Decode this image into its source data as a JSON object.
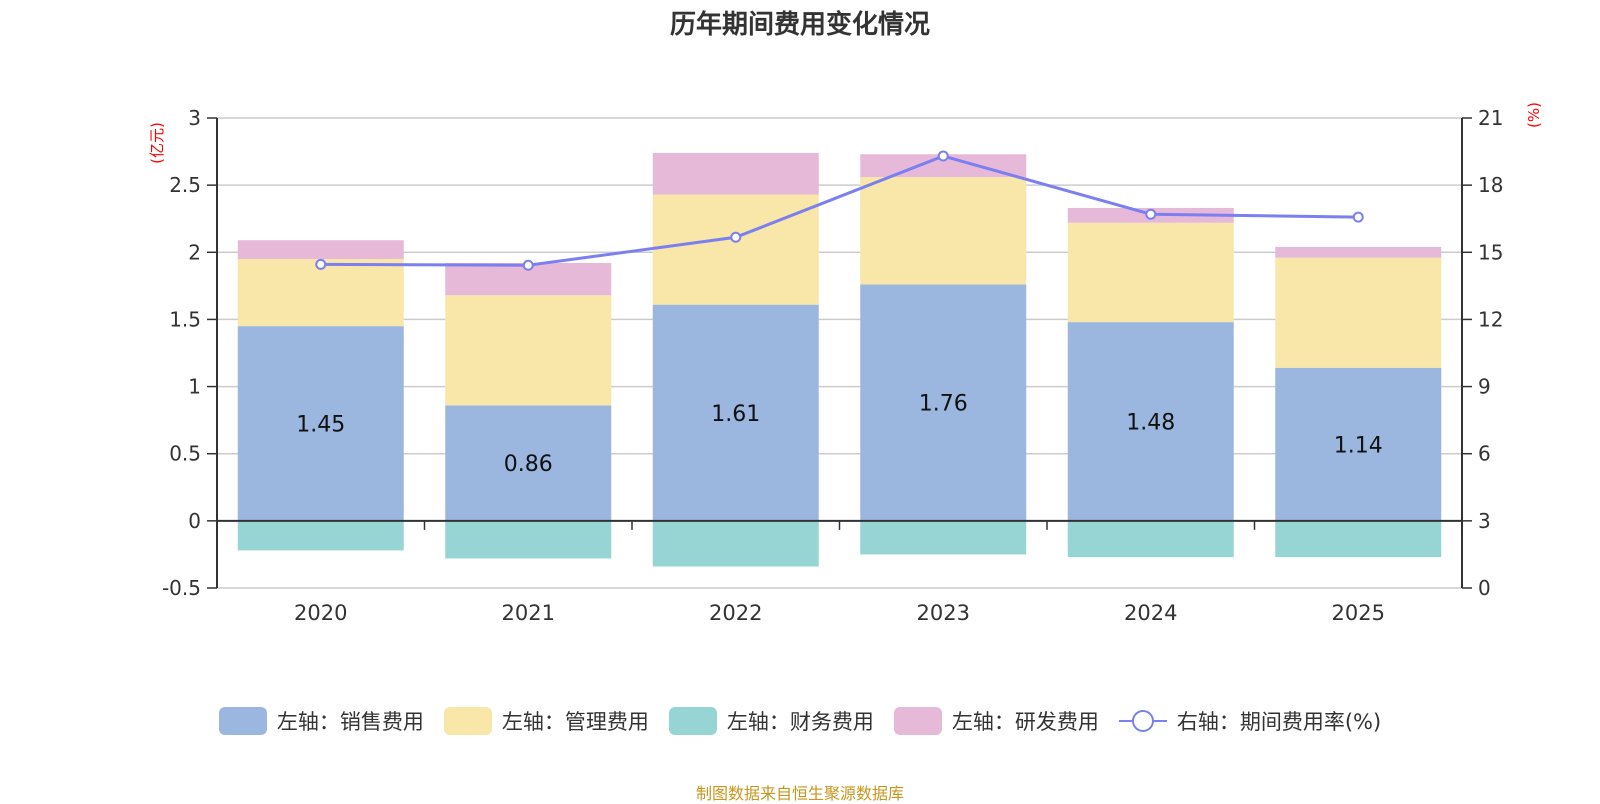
{
  "title": "历年期间费用变化情况",
  "source": "制图数据来自恒生聚源数据库",
  "chart_data": {
    "type": "bar",
    "stacked": true,
    "title": "历年期间费用变化情况",
    "categories": [
      "2020",
      "2021",
      "2022",
      "2023",
      "2024",
      "2025"
    ],
    "left_axis": {
      "label": "(亿元)",
      "min": -0.5,
      "max": 3,
      "ticks": [
        -0.5,
        0,
        0.5,
        1,
        1.5,
        2,
        2.5,
        3
      ],
      "tick_labels": [
        "-0.5",
        "0",
        "0.5",
        "1",
        "1.5",
        "2",
        "2.5",
        "3"
      ]
    },
    "right_axis": {
      "label": "(%)",
      "min": 0,
      "max": 21,
      "ticks": [
        0,
        3,
        6,
        9,
        12,
        15,
        18,
        21
      ],
      "tick_labels": [
        "0",
        "3",
        "6",
        "9",
        "12",
        "15",
        "18",
        "21"
      ]
    },
    "grid": true,
    "legend_position": "bottom",
    "series": [
      {
        "name": "左轴：销售费用",
        "type": "bar",
        "axis": "left",
        "color": "#9bb7e0",
        "values": [
          1.45,
          0.86,
          1.61,
          1.76,
          1.48,
          1.14
        ],
        "data_labels": [
          "1.45",
          "0.86",
          "1.61",
          "1.76",
          "1.48",
          "1.14"
        ]
      },
      {
        "name": "左轴：管理费用",
        "type": "bar",
        "axis": "left",
        "color": "#f8e7a8",
        "values": [
          0.5,
          0.82,
          0.82,
          0.8,
          0.74,
          0.82
        ]
      },
      {
        "name": "左轴：财务费用",
        "type": "bar",
        "axis": "left",
        "color": "#97d4d4",
        "values": [
          -0.22,
          -0.28,
          -0.34,
          -0.25,
          -0.27,
          -0.27
        ]
      },
      {
        "name": "左轴：研发费用",
        "type": "bar",
        "axis": "left",
        "color": "#e7b9d8",
        "values": [
          0.14,
          0.24,
          0.31,
          0.17,
          0.11,
          0.08
        ]
      },
      {
        "name": "右轴：期间费用率(%)",
        "type": "line",
        "axis": "right",
        "color": "#7b7ff0",
        "values": [
          14.46,
          14.42,
          15.67,
          19.3,
          16.7,
          16.57
        ]
      }
    ]
  }
}
